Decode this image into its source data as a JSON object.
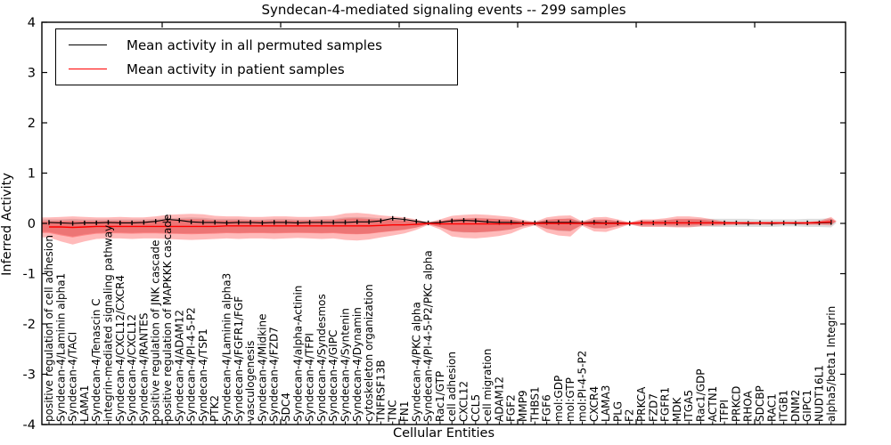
{
  "title": "Syndecan-4-mediated signaling events -- 299 samples",
  "axes": {
    "xlabel": "Cellular Entities",
    "ylabel": "Inferred Activity",
    "ylim": [
      -4,
      4
    ],
    "yticks": [
      4,
      3,
      2,
      1,
      0,
      -1,
      -2,
      -3,
      -4
    ]
  },
  "legend": {
    "items": [
      {
        "label": "Mean activity in all permuted samples",
        "color": "#000000"
      },
      {
        "label": "Mean activity in patient samples",
        "color": "#ff0000"
      }
    ]
  },
  "chart_data": {
    "type": "line",
    "title": "Syndecan-4-mediated signaling events -- 299 samples",
    "xlabel": "Cellular Entities",
    "ylabel": "Inferred Activity",
    "ylim": [
      -4,
      4
    ],
    "grid": false,
    "legend_position": "upper left",
    "categories": [
      "positive regulation of cell adhesion",
      "Syndecan-4/Laminin alpha1",
      "Syndecan-4/TACI",
      "LAMA1",
      "Syndecan-4/Tenascin C",
      "integrin-mediated signaling pathway",
      "Syndecan-4/CXCL12/CXCR4",
      "Syndecan-4/CXCL12",
      "Syndecan-4/RANTES",
      "positive regulation of JNK cascade",
      "positive regulation of MAPKKK cascade",
      "Syndecan-4/ADAM12",
      "Syndecan-4/PI-4-5-P2",
      "Syndecan-4/TSP1",
      "PTK2",
      "Syndecan-4/Laminin alpha3",
      "Syndecan-4/FGFR1/FGF",
      "vasculogenesis",
      "Syndecan-4/Midkine",
      "Syndecan-4/FZD7",
      "SDC4",
      "Syndecan-4/alpha-Actinin",
      "Syndecan-4/TFPI",
      "Syndecan-4/Syndesmos",
      "Syndecan-4/GIPC",
      "Syndecan-4/Syntenin",
      "Syndecan-4/Dynamin",
      "cytoskeleton organization",
      "TNFRSF13B",
      "TNC",
      "FN1",
      "Syndecan-4/PKC alpha",
      "Syndecan-4/PI-4-5-P2/PKC alpha",
      "Rac1/GTP",
      "cell adhesion",
      "CXCL12",
      "CCL5",
      "cell migration",
      "ADAM12",
      "FGF2",
      "MMP9",
      "THBS1",
      "FGF6",
      "mol:GDP",
      "mol:GTP",
      "mol:PI-4-5-P2",
      "CXCR4",
      "LAMA3",
      "PLG",
      "F2",
      "PRKCA",
      "FZD7",
      "FGFR1",
      "MDK",
      "ITGA5",
      "Rac1/GDP",
      "ACTN1",
      "TFPI",
      "PRKCD",
      "RHOA",
      "SDCBP",
      "RAC1",
      "ITGB1",
      "DNM2",
      "GIPC1",
      "NUDT16L1",
      "alpha5/beta1 Integrin"
    ],
    "series": [
      {
        "name": "Mean activity in all permuted samples",
        "color": "#000000",
        "marker": "|",
        "values": [
          0.02,
          0.01,
          0.0,
          0.01,
          0.01,
          0.02,
          0.01,
          0.01,
          0.02,
          0.04,
          0.08,
          0.06,
          0.03,
          0.02,
          0.02,
          0.01,
          0.02,
          0.02,
          0.01,
          0.02,
          0.02,
          0.01,
          0.02,
          0.02,
          0.02,
          0.02,
          0.03,
          0.03,
          0.05,
          0.1,
          0.08,
          0.04,
          0.01,
          0.02,
          0.05,
          0.06,
          0.05,
          0.03,
          0.02,
          0.02,
          0.01,
          0.01,
          0.02,
          0.02,
          0.02,
          0.01,
          0.02,
          0.01,
          0.01,
          0.0,
          0.01,
          0.01,
          0.01,
          0.01,
          0.01,
          0.01,
          0.01,
          0.01,
          0.01,
          0.0,
          0.01,
          0.0,
          0.01,
          0.0,
          0.01,
          0.01,
          0.02
        ]
      },
      {
        "name": "Mean activity in patient samples",
        "color": "#ff0000",
        "marker": "none",
        "values": [
          -0.07,
          -0.07,
          -0.08,
          -0.07,
          -0.06,
          -0.06,
          -0.06,
          -0.06,
          -0.06,
          -0.06,
          -0.06,
          -0.06,
          -0.06,
          -0.06,
          -0.06,
          -0.05,
          -0.05,
          -0.05,
          -0.05,
          -0.05,
          -0.05,
          -0.05,
          -0.05,
          -0.05,
          -0.05,
          -0.05,
          -0.05,
          -0.05,
          -0.04,
          -0.03,
          -0.03,
          -0.02,
          0.0,
          -0.01,
          -0.01,
          -0.01,
          -0.01,
          -0.01,
          -0.01,
          -0.01,
          0.0,
          0.0,
          0.0,
          0.0,
          0.0,
          0.0,
          0.0,
          0.0,
          0.0,
          0.0,
          0.01,
          0.01,
          0.01,
          0.01,
          0.01,
          0.01,
          0.01,
          0.01,
          0.01,
          0.01,
          0.01,
          0.01,
          0.01,
          0.01,
          0.01,
          0.02,
          0.03
        ]
      }
    ],
    "bands": [
      {
        "name": "permuted-sample-range",
        "color": "#787878",
        "opacity": 0.25,
        "upper": [
          0.08,
          0.08,
          0.09,
          0.08,
          0.08,
          0.08,
          0.08,
          0.08,
          0.08,
          0.09,
          0.1,
          0.11,
          0.12,
          0.11,
          0.09,
          0.09,
          0.09,
          0.08,
          0.08,
          0.09,
          0.09,
          0.08,
          0.08,
          0.09,
          0.09,
          0.12,
          0.13,
          0.12,
          0.1,
          0.09,
          0.08,
          0.05,
          0.02,
          0.05,
          0.09,
          0.1,
          0.11,
          0.1,
          0.09,
          0.08,
          0.05,
          0.02,
          0.08,
          0.09,
          0.1,
          0.03,
          0.08,
          0.08,
          0.05,
          0.02,
          0.06,
          0.06,
          0.07,
          0.09,
          0.09,
          0.09,
          0.09,
          0.09,
          0.09,
          0.09,
          0.08,
          0.08,
          0.08,
          0.08,
          0.09,
          0.09,
          0.1
        ],
        "lower": [
          -0.17,
          -0.22,
          -0.26,
          -0.22,
          -0.19,
          -0.18,
          -0.18,
          -0.19,
          -0.18,
          -0.18,
          -0.19,
          -0.2,
          -0.2,
          -0.2,
          -0.19,
          -0.18,
          -0.19,
          -0.18,
          -0.18,
          -0.19,
          -0.18,
          -0.18,
          -0.18,
          -0.19,
          -0.18,
          -0.2,
          -0.21,
          -0.2,
          -0.17,
          -0.15,
          -0.12,
          -0.08,
          -0.02,
          -0.07,
          -0.16,
          -0.18,
          -0.18,
          -0.17,
          -0.15,
          -0.12,
          -0.06,
          -0.03,
          -0.11,
          -0.15,
          -0.16,
          -0.03,
          -0.1,
          -0.1,
          -0.06,
          -0.02,
          -0.06,
          -0.06,
          -0.06,
          -0.07,
          -0.07,
          -0.06,
          -0.07,
          -0.07,
          -0.07,
          -0.07,
          -0.07,
          -0.07,
          -0.06,
          -0.06,
          -0.07,
          -0.07,
          -0.08
        ]
      },
      {
        "name": "patient-sample-range",
        "color": "#ff0000",
        "opacity": 0.27,
        "inner_scale": 0.58,
        "upper": [
          0.12,
          0.13,
          0.14,
          0.13,
          0.12,
          0.12,
          0.13,
          0.12,
          0.12,
          0.14,
          0.17,
          0.18,
          0.19,
          0.18,
          0.15,
          0.14,
          0.14,
          0.13,
          0.13,
          0.14,
          0.14,
          0.13,
          0.13,
          0.14,
          0.15,
          0.2,
          0.21,
          0.19,
          0.16,
          0.14,
          0.12,
          0.08,
          0.02,
          0.08,
          0.15,
          0.17,
          0.18,
          0.17,
          0.15,
          0.13,
          0.07,
          0.03,
          0.12,
          0.15,
          0.16,
          0.04,
          0.12,
          0.13,
          0.08,
          0.02,
          0.08,
          0.08,
          0.1,
          0.14,
          0.14,
          0.12,
          0.08,
          0.04,
          0.03,
          0.03,
          0.03,
          0.03,
          0.03,
          0.03,
          0.03,
          0.05,
          0.13
        ],
        "lower": [
          -0.28,
          -0.36,
          -0.42,
          -0.36,
          -0.31,
          -0.3,
          -0.3,
          -0.31,
          -0.3,
          -0.3,
          -0.31,
          -0.32,
          -0.33,
          -0.32,
          -0.31,
          -0.3,
          -0.31,
          -0.3,
          -0.3,
          -0.31,
          -0.3,
          -0.29,
          -0.3,
          -0.31,
          -0.3,
          -0.33,
          -0.34,
          -0.32,
          -0.28,
          -0.24,
          -0.2,
          -0.13,
          -0.03,
          -0.12,
          -0.26,
          -0.29,
          -0.3,
          -0.28,
          -0.25,
          -0.2,
          -0.1,
          -0.04,
          -0.18,
          -0.24,
          -0.26,
          -0.05,
          -0.16,
          -0.17,
          -0.1,
          -0.02,
          -0.07,
          -0.07,
          -0.07,
          -0.08,
          -0.08,
          -0.06,
          -0.05,
          -0.04,
          -0.03,
          -0.03,
          -0.03,
          -0.03,
          -0.02,
          -0.02,
          -0.03,
          -0.03,
          -0.04
        ]
      }
    ]
  }
}
